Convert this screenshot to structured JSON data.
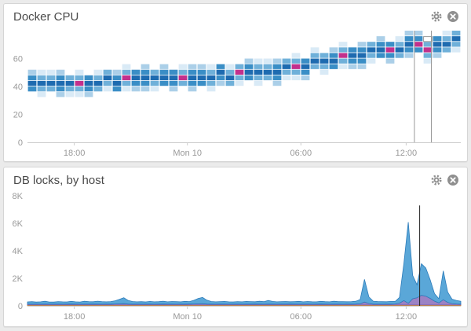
{
  "theme": {
    "page_bg": "#ebebeb",
    "card_bg": "#ffffff",
    "card_border": "#d5d5d5",
    "title_color": "#4a4a4a",
    "icon_color": "#8f8f8f",
    "axis_color": "#cccccc",
    "tick_label_color": "#999999"
  },
  "widgets": [
    {
      "title": "Docker CPU",
      "icon_names": [
        "gear-icon",
        "close-icon"
      ]
    },
    {
      "title": "DB locks, by host",
      "icon_names": [
        "gear-icon",
        "close-icon"
      ]
    }
  ],
  "chart_data": [
    {
      "type": "heatmap",
      "title": "Docker CPU",
      "xlabel": "",
      "ylabel": "",
      "ylim": [
        0,
        80
      ],
      "bin_size": 4,
      "grid": false,
      "legend": "none",
      "x_ticks": [
        {
          "label": "18:00",
          "pos": 0.108
        },
        {
          "label": "Mon 10",
          "pos": 0.369
        },
        {
          "label": "06:00",
          "pos": 0.631
        },
        {
          "label": "12:00",
          "pos": 0.874
        }
      ],
      "y_ticks": [
        {
          "label": "0",
          "value": 0
        },
        {
          "label": "20",
          "value": 20
        },
        {
          "label": "40",
          "value": 40
        },
        {
          "label": "60",
          "value": 60
        }
      ],
      "columns": [
        39,
        40,
        39,
        41,
        40,
        40,
        41,
        40,
        42,
        41,
        42,
        42,
        43,
        42,
        44,
        43,
        44,
        44,
        45,
        44,
        46,
        45,
        47,
        46,
        48,
        47,
        49,
        50,
        51,
        52,
        54,
        55,
        57,
        58,
        60,
        61,
        63,
        64,
        65,
        64,
        66,
        67,
        65,
        68,
        66,
        70
      ],
      "hot_columns": [
        5,
        10,
        16,
        22,
        28,
        33,
        38,
        41,
        42
      ],
      "white_column": 42,
      "selection": {
        "x0": 0.893,
        "x1": 0.932
      },
      "palette": [
        "#d9eaf6",
        "#abcfe8",
        "#6fb0d9",
        "#3a8ec6",
        "#1e6bb0"
      ],
      "hot_color": "#c2308c",
      "selection_color": "#9a9a9a"
    },
    {
      "type": "area",
      "stacked": true,
      "title": "DB locks, by host",
      "xlabel": "",
      "ylabel": "",
      "ylim": [
        0,
        8000
      ],
      "grid": false,
      "legend": "none",
      "x_ticks": [
        {
          "label": "18:00",
          "pos": 0.108
        },
        {
          "label": "Mon 10",
          "pos": 0.369
        },
        {
          "label": "06:00",
          "pos": 0.631
        },
        {
          "label": "12:00",
          "pos": 0.874
        }
      ],
      "y_ticks": [
        {
          "label": "0",
          "value": 0
        },
        {
          "label": "2K",
          "value": 2000
        },
        {
          "label": "4K",
          "value": 4000
        },
        {
          "label": "6K",
          "value": 6000
        },
        {
          "label": "8K",
          "value": 8000
        }
      ],
      "marker": {
        "x": 0.905,
        "y_top": 7300,
        "color": "#222222"
      },
      "series": [
        {
          "name": "series4",
          "color": "#e8d05a",
          "stroke": "#cdb63d",
          "baseline": 26
        },
        {
          "name": "series3",
          "color": "#eda94e",
          "stroke": "#d08030",
          "baseline": 38
        },
        {
          "name": "series2",
          "color": "#9b82c4",
          "stroke": "#7a5fae",
          "values": [
            60,
            55,
            62,
            58,
            60,
            55,
            60,
            62,
            55,
            60,
            65,
            60,
            55,
            60,
            62,
            65,
            60,
            55,
            60,
            62,
            72,
            85,
            95,
            70,
            62,
            60,
            55,
            60,
            62,
            55,
            60,
            65,
            60,
            62,
            55,
            60,
            62,
            65,
            72,
            85,
            90,
            70,
            60,
            55,
            62,
            60,
            55,
            60,
            62,
            55,
            60,
            62,
            65,
            60,
            55,
            60,
            62,
            55,
            60,
            62,
            65,
            60,
            55,
            60,
            62,
            55,
            60,
            65,
            60,
            55,
            62,
            60,
            55,
            62,
            60,
            65,
            85,
            210,
            110,
            62,
            60,
            55,
            62,
            60,
            72,
            130,
            320,
            120,
            450,
            520,
            700,
            640,
            480,
            280,
            150,
            380,
            190,
            100,
            72,
            60
          ]
        },
        {
          "name": "series1",
          "color": "#5aa7d8",
          "stroke": "#2b7bba",
          "values": [
            160,
            185,
            150,
            170,
            205,
            160,
            150,
            185,
            170,
            160,
            195,
            170,
            160,
            205,
            180,
            170,
            215,
            190,
            170,
            185,
            230,
            320,
            430,
            260,
            190,
            170,
            185,
            160,
            195,
            170,
            180,
            205,
            170,
            190,
            185,
            170,
            200,
            180,
            265,
            390,
            460,
            280,
            190,
            170,
            185,
            195,
            170,
            160,
            180,
            170,
            195,
            180,
            170,
            205,
            185,
            265,
            195,
            170,
            185,
            190,
            170,
            185,
            205,
            170,
            190,
            180,
            170,
            195,
            180,
            170,
            205,
            180,
            190,
            170,
            185,
            205,
            310,
            1650,
            480,
            210,
            190,
            185,
            170,
            195,
            185,
            420,
            2700,
            5900,
            1700,
            950,
            2300,
            2050,
            1350,
            550,
            300,
            2100,
            750,
            320,
            260,
            210
          ]
        }
      ]
    }
  ]
}
